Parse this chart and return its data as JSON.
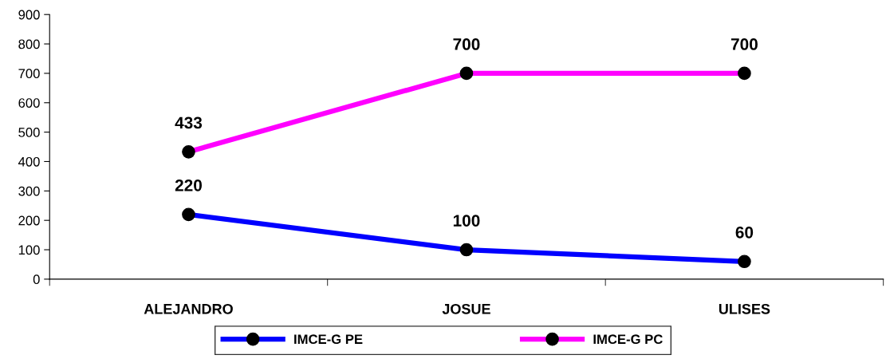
{
  "chart_data": {
    "type": "line",
    "categories": [
      "ALEJANDRO",
      "JOSUE",
      "ULISES"
    ],
    "series": [
      {
        "name": "IMCE-G PE",
        "color": "#0000ff",
        "values": [
          220,
          100,
          60
        ]
      },
      {
        "name": "IMCE-G PC",
        "color": "#ff00ff",
        "values": [
          433,
          700,
          700
        ]
      }
    ],
    "ylim": [
      0,
      900
    ],
    "yticks": [
      0,
      100,
      200,
      300,
      400,
      500,
      600,
      700,
      800,
      900
    ],
    "grid": false,
    "legend": "bottom",
    "marker": "circle",
    "line_style": "solid",
    "data_labels": true
  }
}
